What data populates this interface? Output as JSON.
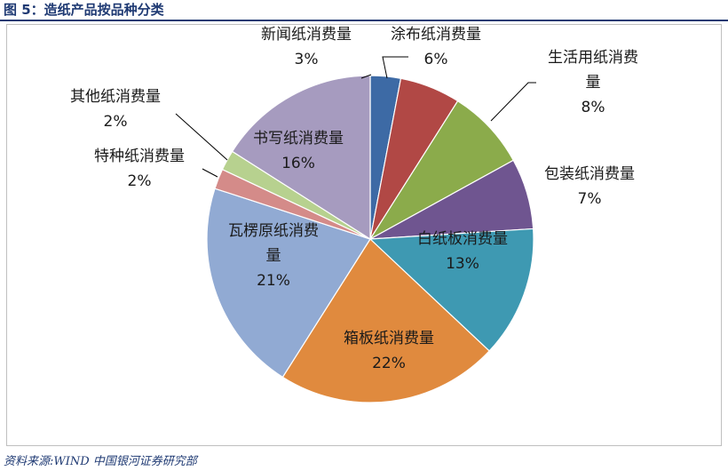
{
  "figure_title": "图 5：造纸产品按品种分类",
  "source_note": "资料来源:WIND   中国银河证券研究部",
  "chart_data": {
    "type": "pie",
    "title": "",
    "legend": "none",
    "slices": [
      {
        "name": "新闻纸消费量",
        "value": 3,
        "label_lines": [
          "新闻纸消费量",
          "3%"
        ],
        "color": "#3d6aa5"
      },
      {
        "name": "涂布纸消费量",
        "value": 6,
        "label_lines": [
          "涂布纸消费量",
          "6%"
        ],
        "color": "#b14845"
      },
      {
        "name": "生活用纸消费量",
        "value": 8,
        "label_lines": [
          "生活用纸消费",
          "量",
          "8%"
        ],
        "color": "#8bab4b"
      },
      {
        "name": "包装纸消费量",
        "value": 7,
        "label_lines": [
          "包装纸消费量",
          "7%"
        ],
        "color": "#6f5590"
      },
      {
        "name": "白纸板消费量",
        "value": 13,
        "label_lines": [
          "白纸板消费量",
          "13%"
        ],
        "color": "#3e99b2"
      },
      {
        "name": "箱板纸消费量",
        "value": 22,
        "label_lines": [
          "箱板纸消费量",
          "22%"
        ],
        "color": "#e08a3e"
      },
      {
        "name": "瓦楞原纸消费量",
        "value": 21,
        "label_lines": [
          "瓦楞原纸消费",
          "量",
          "21%"
        ],
        "color": "#91aad3"
      },
      {
        "name": "特种纸消费量",
        "value": 2,
        "label_lines": [
          "特种纸消费量",
          "2%"
        ],
        "color": "#d48b89"
      },
      {
        "name": "其他纸消费量",
        "value": 2,
        "label_lines": [
          "其他纸消费量",
          "2%"
        ],
        "color": "#b7d18f"
      },
      {
        "name": "书写纸消费量",
        "value": 16,
        "label_lines": [
          "书写纸消费量",
          "16%"
        ],
        "color": "#a69bbf"
      }
    ]
  }
}
